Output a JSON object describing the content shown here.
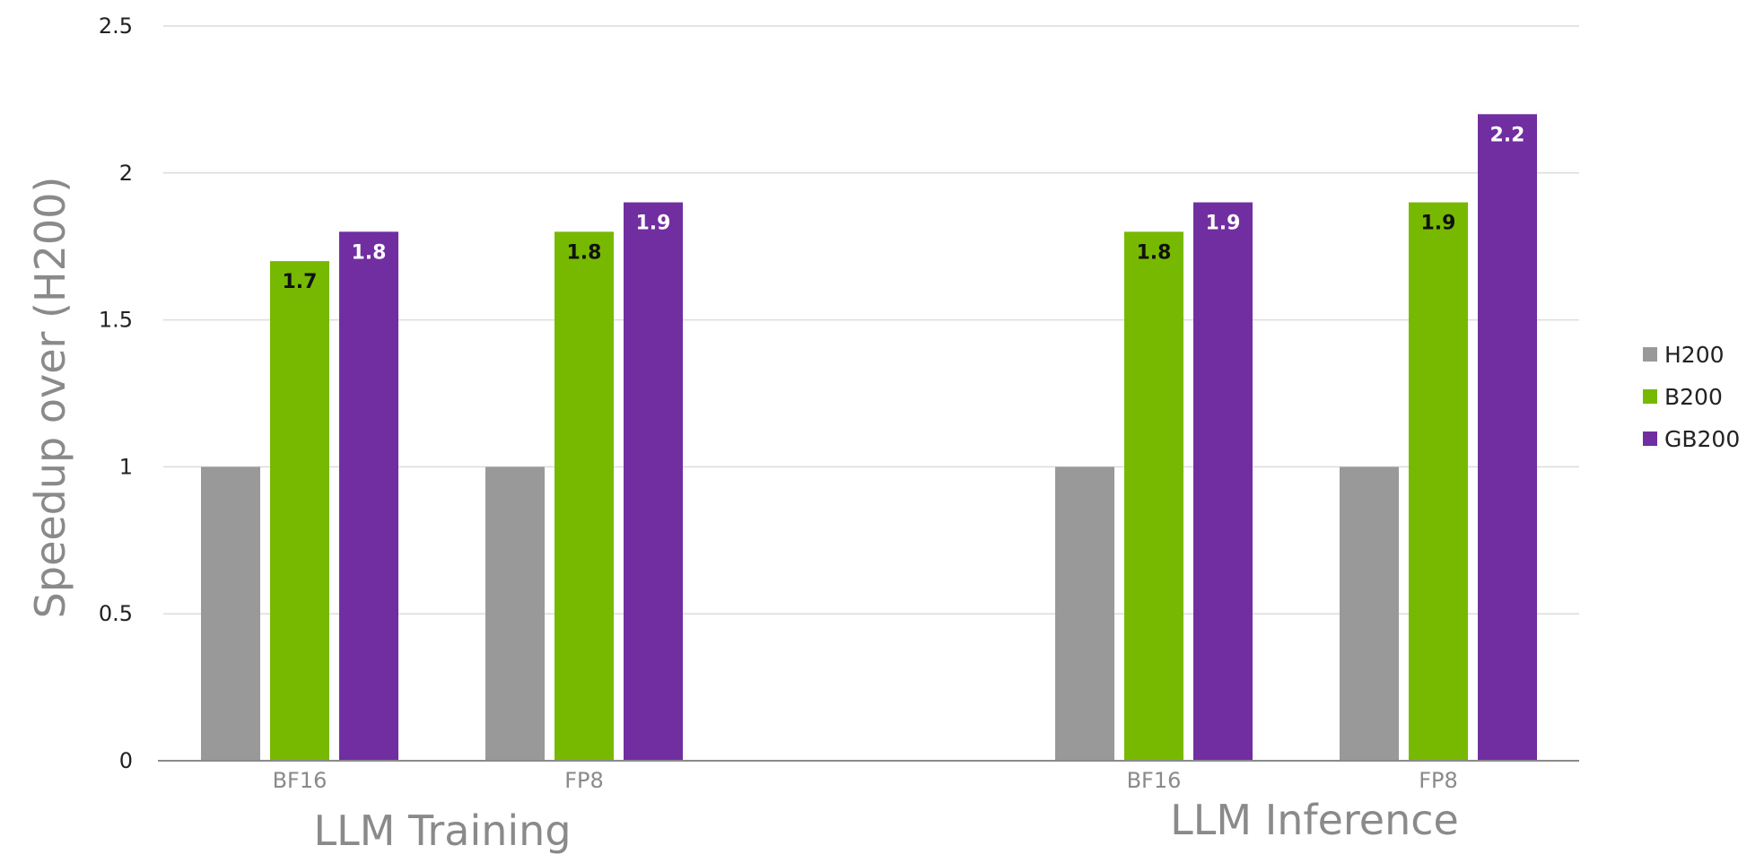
{
  "chart_data": {
    "type": "bar",
    "title": "",
    "ylabel": "Speedup over (H200)",
    "ylim": [
      0,
      2.5
    ],
    "yticks": [
      "0",
      "0.5",
      "1",
      "1.5",
      "2",
      "2.5"
    ],
    "grid": true,
    "legend_position": "right",
    "groups": [
      {
        "name": "LLM Training",
        "categories": [
          "BF16",
          "FP8"
        ]
      },
      {
        "name": "LLM Inference",
        "categories": [
          "BF16",
          "FP8"
        ]
      }
    ],
    "categories": [
      "BF16",
      "FP8",
      "BF16",
      "FP8"
    ],
    "series": [
      {
        "name": "H200",
        "color": "#999999",
        "values": [
          1,
          1,
          1,
          1
        ],
        "labels": [
          "",
          "",
          "",
          ""
        ],
        "label_color": ""
      },
      {
        "name": "B200",
        "color": "#76b900",
        "values": [
          1.7,
          1.8,
          1.8,
          1.9
        ],
        "labels": [
          "1.7",
          "1.8",
          "1.8",
          "1.9"
        ],
        "label_color": "#111111"
      },
      {
        "name": "GB200",
        "color": "#702ea0",
        "values": [
          1.8,
          1.9,
          1.9,
          2.2
        ],
        "labels": [
          "1.8",
          "1.9",
          "1.9",
          "2.2"
        ],
        "label_color": "#ffffff"
      }
    ]
  }
}
